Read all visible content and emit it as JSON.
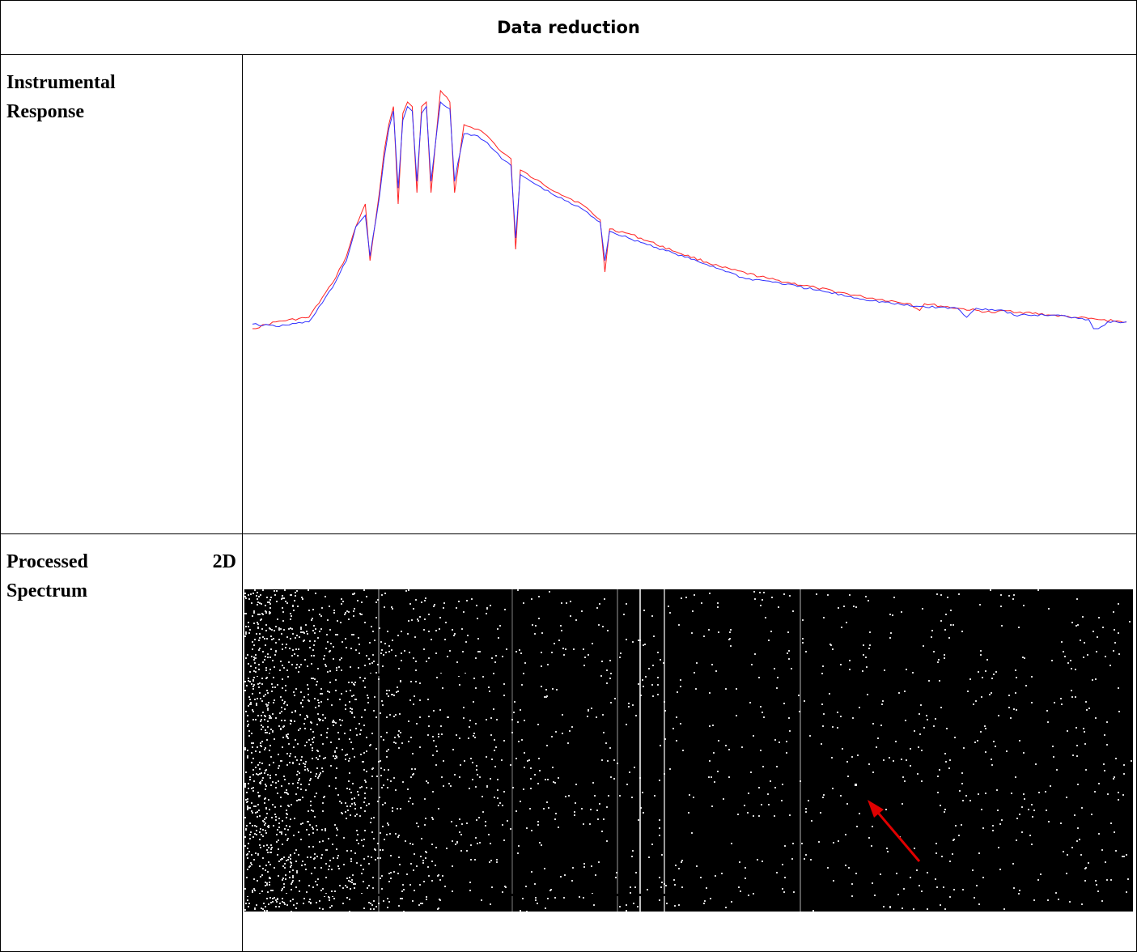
{
  "table": {
    "title": "Data reduction",
    "rows": [
      {
        "label_line1_a": "Instrumental",
        "label_line2": "Response"
      },
      {
        "label_line1_a": "Processed",
        "label_line1_b": "2D",
        "label_line2": "Spectrum"
      }
    ]
  },
  "colors": {
    "series_red": "#ff2020",
    "series_blue": "#3030ff",
    "arrow": "#e00000",
    "spectrum_background": "#000000"
  },
  "chart_data": {
    "type": "line",
    "title": "",
    "xlabel": "",
    "ylabel": "",
    "grid": false,
    "legend": "none",
    "series": [
      {
        "color": "#ff2020",
        "points": [
          [
            0,
            0.0
          ],
          [
            5,
            0.03
          ],
          [
            12,
            0.05
          ],
          [
            17,
            0.2
          ],
          [
            20,
            0.32
          ],
          [
            22,
            0.45
          ],
          [
            24,
            0.55
          ],
          [
            25,
            0.3
          ],
          [
            27,
            0.6
          ],
          [
            28,
            0.78
          ],
          [
            29,
            0.9
          ],
          [
            30,
            0.98
          ],
          [
            31,
            0.55
          ],
          [
            32,
            0.95
          ],
          [
            33,
            1.0
          ],
          [
            34,
            0.98
          ],
          [
            35,
            0.6
          ],
          [
            36,
            0.98
          ],
          [
            37,
            1.0
          ],
          [
            38,
            0.6
          ],
          [
            40,
            1.05
          ],
          [
            42,
            1.0
          ],
          [
            43,
            0.6
          ],
          [
            45,
            0.9
          ],
          [
            48,
            0.88
          ],
          [
            50,
            0.85
          ],
          [
            53,
            0.78
          ],
          [
            55,
            0.75
          ],
          [
            56,
            0.35
          ],
          [
            57,
            0.7
          ],
          [
            60,
            0.66
          ],
          [
            65,
            0.6
          ],
          [
            70,
            0.55
          ],
          [
            74,
            0.48
          ],
          [
            75,
            0.25
          ],
          [
            76,
            0.44
          ],
          [
            80,
            0.42
          ],
          [
            90,
            0.34
          ],
          [
            100,
            0.27
          ],
          [
            110,
            0.22
          ],
          [
            120,
            0.18
          ],
          [
            130,
            0.14
          ],
          [
            140,
            0.11
          ],
          [
            142,
            0.08
          ],
          [
            143,
            0.11
          ],
          [
            150,
            0.09
          ],
          [
            158,
            0.07
          ],
          [
            160,
            0.08
          ],
          [
            170,
            0.06
          ],
          [
            175,
            0.05
          ],
          [
            180,
            0.04
          ],
          [
            186,
            0.03
          ]
        ]
      },
      {
        "color": "#3030ff",
        "points": [
          [
            0,
            0.02
          ],
          [
            5,
            0.01
          ],
          [
            12,
            0.03
          ],
          [
            17,
            0.18
          ],
          [
            20,
            0.3
          ],
          [
            22,
            0.45
          ],
          [
            24,
            0.5
          ],
          [
            25,
            0.32
          ],
          [
            27,
            0.58
          ],
          [
            28,
            0.75
          ],
          [
            29,
            0.88
          ],
          [
            30,
            0.96
          ],
          [
            31,
            0.62
          ],
          [
            32,
            0.92
          ],
          [
            33,
            0.98
          ],
          [
            34,
            0.96
          ],
          [
            35,
            0.65
          ],
          [
            36,
            0.95
          ],
          [
            37,
            0.98
          ],
          [
            38,
            0.65
          ],
          [
            40,
            1.0
          ],
          [
            42,
            0.97
          ],
          [
            43,
            0.65
          ],
          [
            45,
            0.86
          ],
          [
            48,
            0.85
          ],
          [
            50,
            0.82
          ],
          [
            53,
            0.75
          ],
          [
            55,
            0.72
          ],
          [
            56,
            0.4
          ],
          [
            57,
            0.68
          ],
          [
            60,
            0.64
          ],
          [
            65,
            0.58
          ],
          [
            70,
            0.53
          ],
          [
            74,
            0.47
          ],
          [
            75,
            0.3
          ],
          [
            76,
            0.43
          ],
          [
            80,
            0.4
          ],
          [
            90,
            0.33
          ],
          [
            100,
            0.26
          ],
          [
            105,
            0.22
          ],
          [
            110,
            0.21
          ],
          [
            120,
            0.17
          ],
          [
            130,
            0.13
          ],
          [
            140,
            0.1
          ],
          [
            150,
            0.09
          ],
          [
            152,
            0.05
          ],
          [
            154,
            0.09
          ],
          [
            160,
            0.08
          ],
          [
            162,
            0.06
          ],
          [
            165,
            0.06
          ],
          [
            170,
            0.06
          ],
          [
            175,
            0.05
          ],
          [
            178,
            0.04
          ],
          [
            179,
            0.0
          ],
          [
            180,
            0.0
          ],
          [
            182,
            0.03
          ],
          [
            186,
            0.03
          ]
        ]
      }
    ]
  }
}
